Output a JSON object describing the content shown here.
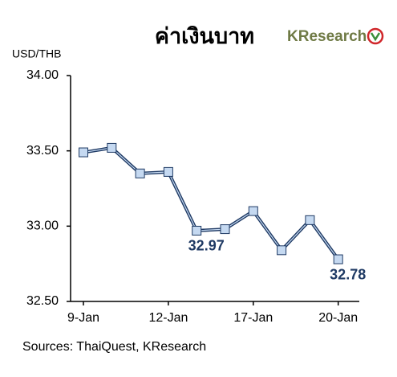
{
  "chart_data": {
    "type": "line",
    "title": "ค่าเงินบาท",
    "logo": "KResearch",
    "y_label": "USD/THB",
    "source": "Sources: ThaiQuest, KResearch",
    "categories": [
      "9-Jan",
      null,
      null,
      "12-Jan",
      null,
      null,
      "17-Jan",
      null,
      null,
      "20-Jan"
    ],
    "series": [
      {
        "name": "USD/THB",
        "color": "#1f3a64",
        "marker_color": "#c5d9f1",
        "values": [
          33.49,
          33.52,
          33.35,
          33.36,
          32.97,
          32.98,
          33.1,
          32.84,
          33.04,
          32.78
        ],
        "value_labels": [
          null,
          null,
          null,
          null,
          "32.97",
          null,
          null,
          null,
          null,
          "32.78"
        ]
      }
    ],
    "ylim": [
      32.5,
      34.0
    ],
    "yticks": [
      {
        "value": 32.5,
        "label": "32.50"
      },
      {
        "value": 33.0,
        "label": "33.00"
      },
      {
        "value": 33.5,
        "label": "33.50"
      },
      {
        "value": 34.0,
        "label": "34.00"
      }
    ],
    "grid": false
  }
}
